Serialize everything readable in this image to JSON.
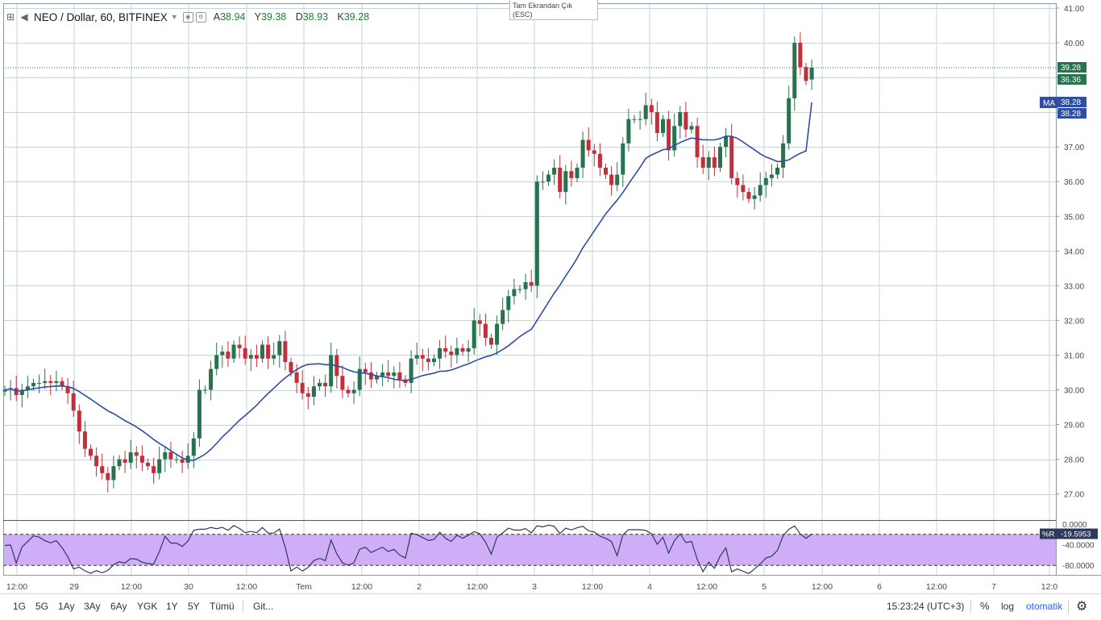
{
  "header": {
    "title": "NEO / Dollar, 60, BITFINEX",
    "ohlc": [
      {
        "key": "A",
        "value": "38.94"
      },
      {
        "key": "Y",
        "value": "39.38"
      },
      {
        "key": "D",
        "value": "38.93"
      },
      {
        "key": "K",
        "value": "39.28"
      }
    ]
  },
  "tooltip": {
    "line1": "Tam Ekrandan Çık",
    "line2": "(ESC)"
  },
  "price_tags": {
    "last": "39.28",
    "countdown": "36.36",
    "ma_label": "MA",
    "ma_value": "38.28",
    "ma_value2": "38.28",
    "wr_label": "%R",
    "wr_value": "-19.5953"
  },
  "bottom": {
    "periods": [
      "1G",
      "5G",
      "1Ay",
      "3Ay",
      "6Ay",
      "YGK",
      "1Y",
      "5Y",
      "Tümü"
    ],
    "goto": "Git...",
    "clock": "15:23:24 (UTC+3)",
    "percent": "%",
    "log": "log",
    "auto": "otomatik"
  },
  "colors": {
    "up": "#26734d",
    "down": "#c0303c",
    "ma": "#2f4ea3",
    "wr_band": "#cfadf7",
    "wr_line": "#2e3a5c"
  },
  "chart_data": [
    {
      "type": "candlestick",
      "title": "NEO / Dollar, 60, BITFINEX",
      "ylim": [
        26.5,
        41.0
      ],
      "y_ticks": [
        "27.00",
        "28.00",
        "29.00",
        "30.00",
        "31.00",
        "32.00",
        "33.00",
        "34.00",
        "35.00",
        "36.00",
        "37.00",
        "38.00",
        "39.00",
        "40.00",
        "41.00"
      ],
      "x_ticks": [
        "12:00",
        "29",
        "12:00",
        "30",
        "12:00",
        "Tem",
        "12:00",
        "2",
        "12:00",
        "3",
        "12:00",
        "4",
        "12:00",
        "5",
        "12:00",
        "6",
        "12:00",
        "7",
        "12:0"
      ],
      "close": [
        30.0,
        30.05,
        29.85,
        30.0,
        30.1,
        30.2,
        30.2,
        30.25,
        30.2,
        30.25,
        30.1,
        29.9,
        29.4,
        28.8,
        28.3,
        28.1,
        27.8,
        27.6,
        27.4,
        27.8,
        28.0,
        27.9,
        28.2,
        28.1,
        27.9,
        27.8,
        27.6,
        28.0,
        28.2,
        28.0,
        28.0,
        27.9,
        28.1,
        28.6,
        30.0,
        30.0,
        30.6,
        31.0,
        31.1,
        30.9,
        31.3,
        31.2,
        30.9,
        31.0,
        30.9,
        31.3,
        30.9,
        31.0,
        31.4,
        30.8,
        30.5,
        30.2,
        29.9,
        29.8,
        30.1,
        30.2,
        30.1,
        31.0,
        30.4,
        30.0,
        29.9,
        30.0,
        30.6,
        30.5,
        30.3,
        30.4,
        30.5,
        30.4,
        30.5,
        30.3,
        30.2,
        30.9,
        31.0,
        30.9,
        30.8,
        30.9,
        31.2,
        31.1,
        31.0,
        31.2,
        31.1,
        31.2,
        32.0,
        31.9,
        31.5,
        31.3,
        31.9,
        32.3,
        32.7,
        32.9,
        32.9,
        33.1,
        33.0,
        36.0,
        36.0,
        36.2,
        36.4,
        35.7,
        36.3,
        36.1,
        36.4,
        37.2,
        36.9,
        36.8,
        36.4,
        36.2,
        35.9,
        36.2,
        37.1,
        37.8,
        37.8,
        37.8,
        38.2,
        38.0,
        37.4,
        37.8,
        36.9,
        37.6,
        38.0,
        37.5,
        37.6,
        36.7,
        36.4,
        36.7,
        36.4,
        37.0,
        37.3,
        36.1,
        35.9,
        35.7,
        35.5,
        35.6,
        35.9,
        36.1,
        36.2,
        36.4,
        37.1,
        38.4,
        40.0,
        39.3,
        38.9,
        39.28
      ],
      "ma_period": 20,
      "ma_last": 38.28,
      "wr_ylim": [
        -100,
        0
      ],
      "wr_levels": [
        -20,
        -80
      ],
      "wr_ticks": [
        "0.0000",
        "-40.0000",
        "-80.0000"
      ],
      "wr_last": -19.5953
    }
  ]
}
